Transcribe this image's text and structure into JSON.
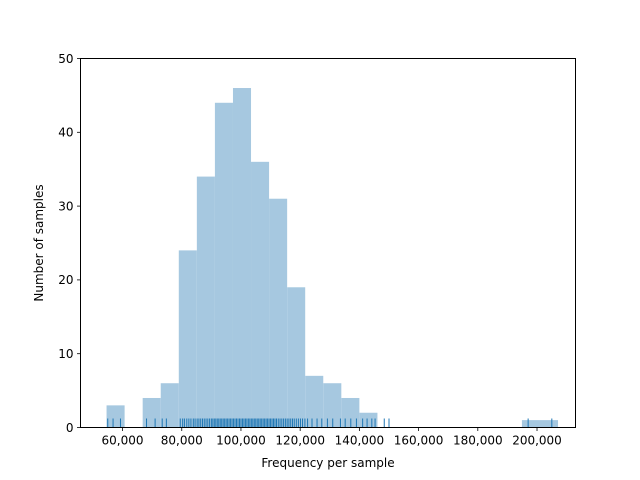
{
  "chart_data": {
    "type": "bar",
    "subtype": "histogram-with-rug",
    "xlabel": "Frequency per sample",
    "ylabel": "Number of samples",
    "xlim": [
      45800,
      213000
    ],
    "ylim": [
      0,
      50
    ],
    "xticks": [
      60000,
      80000,
      100000,
      120000,
      140000,
      160000,
      180000,
      200000
    ],
    "xtick_labels": [
      "60,000",
      "80,000",
      "100,000",
      "120,000",
      "140,000",
      "160,000",
      "180,000",
      "200,000"
    ],
    "yticks": [
      0,
      10,
      20,
      30,
      40,
      50
    ],
    "ytick_labels": [
      "0",
      "10",
      "20",
      "30",
      "40",
      "50"
    ],
    "grid": false,
    "bar_color": "#a6c8e0",
    "rug_color": "#1f77b4",
    "bins": [
      {
        "x0": 54600,
        "x1": 60700,
        "count": 3
      },
      {
        "x0": 60700,
        "x1": 66800,
        "count": 0
      },
      {
        "x0": 66800,
        "x1": 72900,
        "count": 4
      },
      {
        "x0": 72900,
        "x1": 79000,
        "count": 6
      },
      {
        "x0": 79000,
        "x1": 85100,
        "count": 24
      },
      {
        "x0": 85100,
        "x1": 91200,
        "count": 34
      },
      {
        "x0": 91200,
        "x1": 97300,
        "count": 44
      },
      {
        "x0": 97300,
        "x1": 103400,
        "count": 46
      },
      {
        "x0": 103400,
        "x1": 109500,
        "count": 36
      },
      {
        "x0": 109500,
        "x1": 115600,
        "count": 31
      },
      {
        "x0": 115600,
        "x1": 121700,
        "count": 19
      },
      {
        "x0": 121700,
        "x1": 127800,
        "count": 7
      },
      {
        "x0": 127800,
        "x1": 133900,
        "count": 6
      },
      {
        "x0": 133900,
        "x1": 140000,
        "count": 4
      },
      {
        "x0": 140000,
        "x1": 146100,
        "count": 2
      },
      {
        "x0": 146100,
        "x1": 152200,
        "count": 0
      },
      {
        "x0": 152200,
        "x1": 158300,
        "count": 0
      },
      {
        "x0": 158300,
        "x1": 164400,
        "count": 0
      },
      {
        "x0": 164400,
        "x1": 170500,
        "count": 0
      },
      {
        "x0": 170500,
        "x1": 176600,
        "count": 0
      },
      {
        "x0": 176600,
        "x1": 182700,
        "count": 0
      },
      {
        "x0": 182700,
        "x1": 188800,
        "count": 0
      },
      {
        "x0": 188800,
        "x1": 194900,
        "count": 0
      },
      {
        "x0": 194900,
        "x1": 201000,
        "count": 1
      },
      {
        "x0": 201000,
        "x1": 207100,
        "count": 1
      }
    ],
    "rug": [
      55000,
      56800,
      59300,
      68100,
      71000,
      73400,
      74800,
      79500,
      80300,
      80900,
      81700,
      82400,
      83100,
      83900,
      84500,
      85200,
      85800,
      86400,
      87000,
      87600,
      88200,
      88800,
      89400,
      90000,
      90500,
      91000,
      91500,
      92000,
      92500,
      93000,
      93500,
      94000,
      94500,
      95000,
      95500,
      96000,
      96500,
      97000,
      97500,
      98000,
      98500,
      99000,
      99500,
      100000,
      100500,
      101000,
      101500,
      102000,
      102500,
      103000,
      103500,
      104000,
      104500,
      105000,
      105500,
      106000,
      106500,
      107000,
      107500,
      108000,
      108500,
      109000,
      109500,
      110000,
      110500,
      111000,
      111500,
      112000,
      112600,
      113200,
      113800,
      114400,
      115000,
      115600,
      116200,
      116800,
      117400,
      118000,
      118700,
      119400,
      120100,
      120800,
      121600,
      122500,
      124000,
      125700,
      127300,
      129200,
      131000,
      133600,
      135200,
      137100,
      139000,
      141100,
      142600,
      144200,
      145300,
      148400,
      150000,
      197000,
      205000
    ]
  }
}
